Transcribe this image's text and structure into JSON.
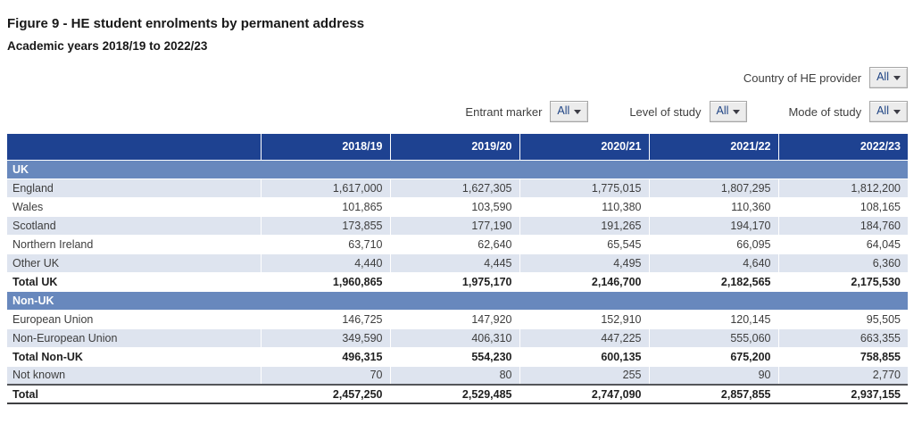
{
  "page": {
    "title": "Figure 9 - HE student enrolments by permanent address",
    "subtitle": "Academic years 2018/19 to 2022/23"
  },
  "filters": [
    {
      "label": "Country of HE provider",
      "value": "All",
      "icon": "caret-down-icon"
    },
    {
      "label": "Entrant marker",
      "value": "All",
      "icon": "caret-down-icon"
    },
    {
      "label": "Level of study",
      "value": "All",
      "icon": "caret-down-icon"
    },
    {
      "label": "Mode of study",
      "value": "All",
      "icon": "caret-down-icon"
    }
  ],
  "colors": {
    "header_bg": "#1e4291",
    "section_bg": "#6888bd",
    "shaded_row_bg": "#dee4ef",
    "header_text": "#ffffff",
    "dropdown_text": "#1e4384"
  },
  "table": {
    "columns": [
      "",
      "2018/19",
      "2019/20",
      "2020/21",
      "2021/22",
      "2022/23"
    ],
    "rows": [
      {
        "type": "section",
        "label": "UK"
      },
      {
        "type": "data",
        "shaded": true,
        "label": "England",
        "values": [
          "1,617,000",
          "1,627,305",
          "1,775,015",
          "1,807,295",
          "1,812,200"
        ]
      },
      {
        "type": "data",
        "shaded": false,
        "label": "Wales",
        "values": [
          "101,865",
          "103,590",
          "110,380",
          "110,360",
          "108,165"
        ]
      },
      {
        "type": "data",
        "shaded": true,
        "label": "Scotland",
        "values": [
          "173,855",
          "177,190",
          "191,265",
          "194,170",
          "184,760"
        ]
      },
      {
        "type": "data",
        "shaded": false,
        "label": "Northern Ireland",
        "values": [
          "63,710",
          "62,640",
          "65,545",
          "66,095",
          "64,045"
        ]
      },
      {
        "type": "data",
        "shaded": true,
        "label": "Other UK",
        "values": [
          "4,440",
          "4,445",
          "4,495",
          "4,640",
          "6,360"
        ]
      },
      {
        "type": "total",
        "shaded": false,
        "label": "Total UK",
        "values": [
          "1,960,865",
          "1,975,170",
          "2,146,700",
          "2,182,565",
          "2,175,530"
        ]
      },
      {
        "type": "section",
        "label": "Non-UK"
      },
      {
        "type": "data",
        "shaded": false,
        "label": "European Union",
        "values": [
          "146,725",
          "147,920",
          "152,910",
          "120,145",
          "95,505"
        ]
      },
      {
        "type": "data",
        "shaded": true,
        "label": "Non-European Union",
        "values": [
          "349,590",
          "406,310",
          "447,225",
          "555,060",
          "663,355"
        ]
      },
      {
        "type": "total",
        "shaded": false,
        "label": "Total Non-UK",
        "values": [
          "496,315",
          "554,230",
          "600,135",
          "675,200",
          "758,855"
        ]
      },
      {
        "type": "data",
        "shaded": true,
        "label": "Not known",
        "values": [
          "70",
          "80",
          "255",
          "90",
          "2,770"
        ]
      },
      {
        "type": "grand",
        "shaded": false,
        "label": "Total",
        "values": [
          "2,457,250",
          "2,529,485",
          "2,747,090",
          "2,857,855",
          "2,937,155"
        ]
      }
    ]
  }
}
